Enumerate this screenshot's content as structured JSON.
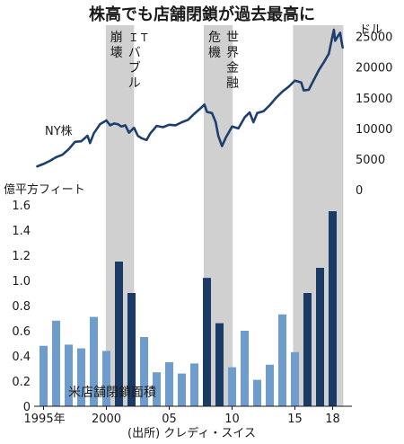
{
  "chart_data": [
    {
      "type": "line",
      "title": "株高でも店舗閉鎖が過去最高に",
      "series": [
        {
          "name": "NY株"
        }
      ],
      "unit_label": "ドル",
      "ylim": [
        0,
        27000
      ],
      "y_ticks": [
        "0",
        "5000",
        "10000",
        "15000",
        "20000",
        "25000"
      ],
      "x_range": [
        1994.5,
        2018.8
      ],
      "points": [
        [
          1994.5,
          3800
        ],
        [
          1995.0,
          4200
        ],
        [
          1995.5,
          4700
        ],
        [
          1996.0,
          5300
        ],
        [
          1996.5,
          5700
        ],
        [
          1997.0,
          6600
        ],
        [
          1997.5,
          7800
        ],
        [
          1998.0,
          7900
        ],
        [
          1998.5,
          8800
        ],
        [
          1998.7,
          7600
        ],
        [
          1999.0,
          9200
        ],
        [
          1999.5,
          10700
        ],
        [
          2000.0,
          11300
        ],
        [
          2000.3,
          10500
        ],
        [
          2000.6,
          10800
        ],
        [
          2000.9,
          10700
        ],
        [
          2001.2,
          10300
        ],
        [
          2001.5,
          10500
        ],
        [
          2001.8,
          9300
        ],
        [
          2002.2,
          10100
        ],
        [
          2002.5,
          8800
        ],
        [
          2002.8,
          8400
        ],
        [
          2003.2,
          8100
        ],
        [
          2003.5,
          9200
        ],
        [
          2004.0,
          10400
        ],
        [
          2004.5,
          10200
        ],
        [
          2005.0,
          10600
        ],
        [
          2005.5,
          10500
        ],
        [
          2006.0,
          11000
        ],
        [
          2006.5,
          11400
        ],
        [
          2007.0,
          12400
        ],
        [
          2007.5,
          13300
        ],
        [
          2007.8,
          13900
        ],
        [
          2008.0,
          12700
        ],
        [
          2008.4,
          12500
        ],
        [
          2008.7,
          11000
        ],
        [
          2008.9,
          8800
        ],
        [
          2009.2,
          7100
        ],
        [
          2009.5,
          8500
        ],
        [
          2010.0,
          10300
        ],
        [
          2010.5,
          10000
        ],
        [
          2011.0,
          11800
        ],
        [
          2011.4,
          12600
        ],
        [
          2011.7,
          11000
        ],
        [
          2012.0,
          12500
        ],
        [
          2012.5,
          12800
        ],
        [
          2013.0,
          13800
        ],
        [
          2013.5,
          15000
        ],
        [
          2014.0,
          16000
        ],
        [
          2014.5,
          16800
        ],
        [
          2015.0,
          17800
        ],
        [
          2015.5,
          17500
        ],
        [
          2015.7,
          16200
        ],
        [
          2016.1,
          16300
        ],
        [
          2016.5,
          17900
        ],
        [
          2016.9,
          19500
        ],
        [
          2017.3,
          20800
        ],
        [
          2017.7,
          22200
        ],
        [
          2017.95,
          24700
        ],
        [
          2018.1,
          26100
        ],
        [
          2018.2,
          24300
        ],
        [
          2018.4,
          25000
        ],
        [
          2018.6,
          25600
        ],
        [
          2018.7,
          24300
        ],
        [
          2018.8,
          23200
        ]
      ],
      "shaded_periods": [
        {
          "from": 1999.95,
          "to": 2002.2,
          "label": [
            "崩",
            "壊",
            "ＩＴ",
            "バ",
            "ブ",
            "ル"
          ]
        },
        {
          "from": 2007.75,
          "to": 2010.05,
          "label": [
            "危",
            "機",
            "世",
            "界",
            "金",
            "融"
          ]
        },
        {
          "from": 2014.85,
          "to": 2018.85
        }
      ]
    },
    {
      "type": "bar",
      "title": "米店舗閉鎖面積",
      "unit_label": "億平方フィート",
      "ylim": [
        0,
        1.6
      ],
      "y_ticks": [
        "0",
        "0.2",
        "0.4",
        "0.6",
        "0.8",
        "1.0",
        "1.2",
        "1.4",
        "1.6"
      ],
      "categories": [
        1995,
        1996,
        1997,
        1998,
        1999,
        2000,
        2001,
        2002,
        2003,
        2004,
        2005,
        2006,
        2007,
        2008,
        2009,
        2010,
        2011,
        2012,
        2013,
        2014,
        2015,
        2016,
        2017,
        2018
      ],
      "values": [
        0.48,
        0.68,
        0.49,
        0.46,
        0.71,
        0.44,
        1.15,
        0.9,
        0.55,
        0.27,
        0.35,
        0.26,
        0.34,
        1.02,
        0.66,
        0.31,
        0.6,
        0.21,
        0.33,
        0.73,
        0.43,
        0.9,
        1.1,
        1.55
      ],
      "highlight": [
        false,
        false,
        false,
        false,
        false,
        false,
        true,
        true,
        false,
        false,
        false,
        false,
        false,
        true,
        true,
        false,
        false,
        false,
        false,
        false,
        false,
        true,
        true,
        true
      ],
      "x_tick_labels": [
        "1995年",
        "2000",
        "05",
        "10",
        "15",
        "18"
      ],
      "x_tick_years": [
        1995,
        2000,
        2005,
        2010,
        2015,
        2018
      ]
    }
  ],
  "source": "(出所) クレディ・スイス",
  "colors": {
    "line": "#1d3f6e",
    "bar_light": "#6d9ccd",
    "bar_dark": "#1a3b66",
    "shade": "#d0d0d0",
    "text": "#1a1a1a"
  }
}
